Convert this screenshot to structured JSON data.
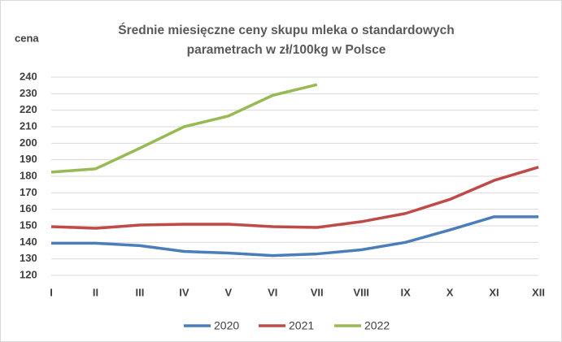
{
  "chart_data": {
    "type": "line",
    "title": [
      "Średnie miesięczne ceny  skupu mleka o standardowych",
      "parametrach  w zł/100kg w Polsce"
    ],
    "y_label": "cena",
    "categories": [
      "I",
      "II",
      "III",
      "IV",
      "V",
      "VI",
      "VII",
      "VIII",
      "IX",
      "X",
      "XI",
      "XII"
    ],
    "series": [
      {
        "name": "2020",
        "color": "#4a7ebb",
        "values": [
          139.5,
          139.5,
          138,
          134.5,
          133.5,
          132,
          133,
          135.5,
          140,
          147.5,
          155.5,
          155.5
        ]
      },
      {
        "name": "2021",
        "color": "#be4b48",
        "values": [
          149.5,
          148.5,
          150.5,
          151,
          151,
          149.5,
          149,
          152.5,
          157.5,
          166,
          177.5,
          185.5
        ]
      },
      {
        "name": "2022",
        "color": "#98b954",
        "values": [
          182.5,
          184.5,
          197,
          210,
          216.5,
          229,
          235.5,
          null,
          null,
          null,
          null,
          null
        ]
      }
    ],
    "ylim": [
      120,
      240
    ],
    "yticks": [
      120,
      130,
      140,
      150,
      160,
      170,
      180,
      190,
      200,
      210,
      220,
      230,
      240
    ],
    "grid": true,
    "legend": "bottom"
  }
}
